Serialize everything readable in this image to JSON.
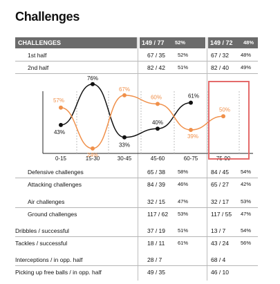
{
  "title": "Challenges",
  "header": {
    "label": "CHALLENGES",
    "a_value": "149 / 77",
    "a_pct": "52%",
    "b_value": "149 / 72",
    "b_pct": "48%"
  },
  "halves": [
    {
      "label": "1st half",
      "a_value": "67 / 35",
      "a_pct": "52%",
      "b_value": "67 / 32",
      "b_pct": "48%"
    },
    {
      "label": "2nd half",
      "a_value": "82 / 42",
      "a_pct": "51%",
      "b_value": "82 / 40",
      "b_pct": "49%"
    }
  ],
  "chart_data": {
    "type": "line",
    "categories": [
      "0-15",
      "15-30",
      "30-45",
      "45-60",
      "60-75",
      "75-90"
    ],
    "series": [
      {
        "values": [
          43,
          76,
          33,
          40,
          61,
          null
        ],
        "labels": [
          "43%",
          "76%",
          "33%",
          "40%",
          "61%",
          ""
        ],
        "color": "#111111"
      },
      {
        "values": [
          57,
          24,
          67,
          60,
          39,
          50
        ],
        "labels": [
          "57%",
          "24%",
          "67%",
          "60%",
          "39%",
          "50%"
        ],
        "color": "#f0904a"
      }
    ],
    "highlight_category": "75-90",
    "highlight_color": "#e46a6a"
  },
  "rows": [
    {
      "label": "Defensive challenges",
      "a_value": "65 / 38",
      "a_pct": "58%",
      "b_value": "84 / 45",
      "b_pct": "54%"
    },
    {
      "label": "Attacking challenges",
      "a_value": "84 / 39",
      "a_pct": "46%",
      "b_value": "65 / 27",
      "b_pct": "42%"
    },
    {
      "label": "Air challenges",
      "a_value": "32 / 15",
      "a_pct": "47%",
      "b_value": "32 / 17",
      "b_pct": "53%"
    },
    {
      "label": "Ground challenges",
      "a_value": "117 / 62",
      "a_pct": "53%",
      "b_value": "117 / 55",
      "b_pct": "47%"
    },
    {
      "label": "Dribbles / successful",
      "a_value": "37 / 19",
      "a_pct": "51%",
      "b_value": "13 / 7",
      "b_pct": "54%"
    },
    {
      "label": "Tackles / successful",
      "a_value": "18 / 11",
      "a_pct": "61%",
      "b_value": "43 / 24",
      "b_pct": "56%"
    },
    {
      "label": "Interceptions / in opp. half",
      "a_value": "28 / 7",
      "a_pct": "",
      "b_value": "68 / 4",
      "b_pct": ""
    },
    {
      "label": "Picking up free balls / in opp. half",
      "a_value": "49 / 35",
      "a_pct": "",
      "b_value": "46 / 10",
      "b_pct": ""
    }
  ]
}
